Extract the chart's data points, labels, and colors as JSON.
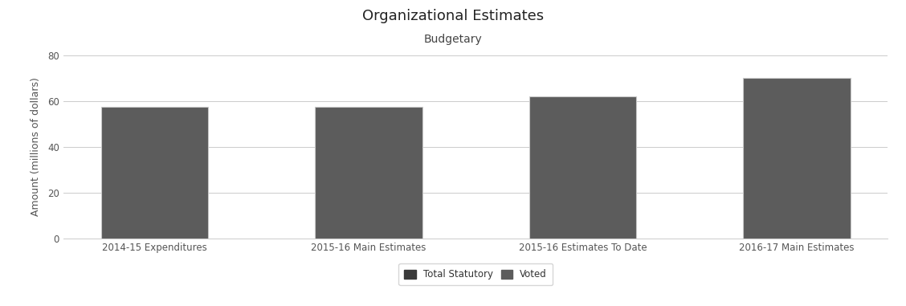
{
  "title": "Organizational Estimates",
  "subtitle": "Budgetary",
  "categories": [
    "2014-15 Expenditures",
    "2015-16 Main Estimates",
    "2015-16 Estimates To Date",
    "2016-17 Main Estimates"
  ],
  "values": [
    57.5,
    57.5,
    62.0,
    70.0
  ],
  "bar_color": "#5c5c5c",
  "bar_edge_color": "#c8c8c8",
  "ylabel": "Amount (millions of dollars)",
  "ylim": [
    0,
    80
  ],
  "yticks": [
    0,
    20,
    40,
    60,
    80
  ],
  "background_color": "#ffffff",
  "grid_color": "#cccccc",
  "legend_labels": [
    "Total Statutory",
    "Voted"
  ],
  "legend_colors": [
    "#3a3a3a",
    "#5c5c5c"
  ],
  "title_fontsize": 13,
  "subtitle_fontsize": 10,
  "label_fontsize": 9,
  "tick_fontsize": 8.5
}
